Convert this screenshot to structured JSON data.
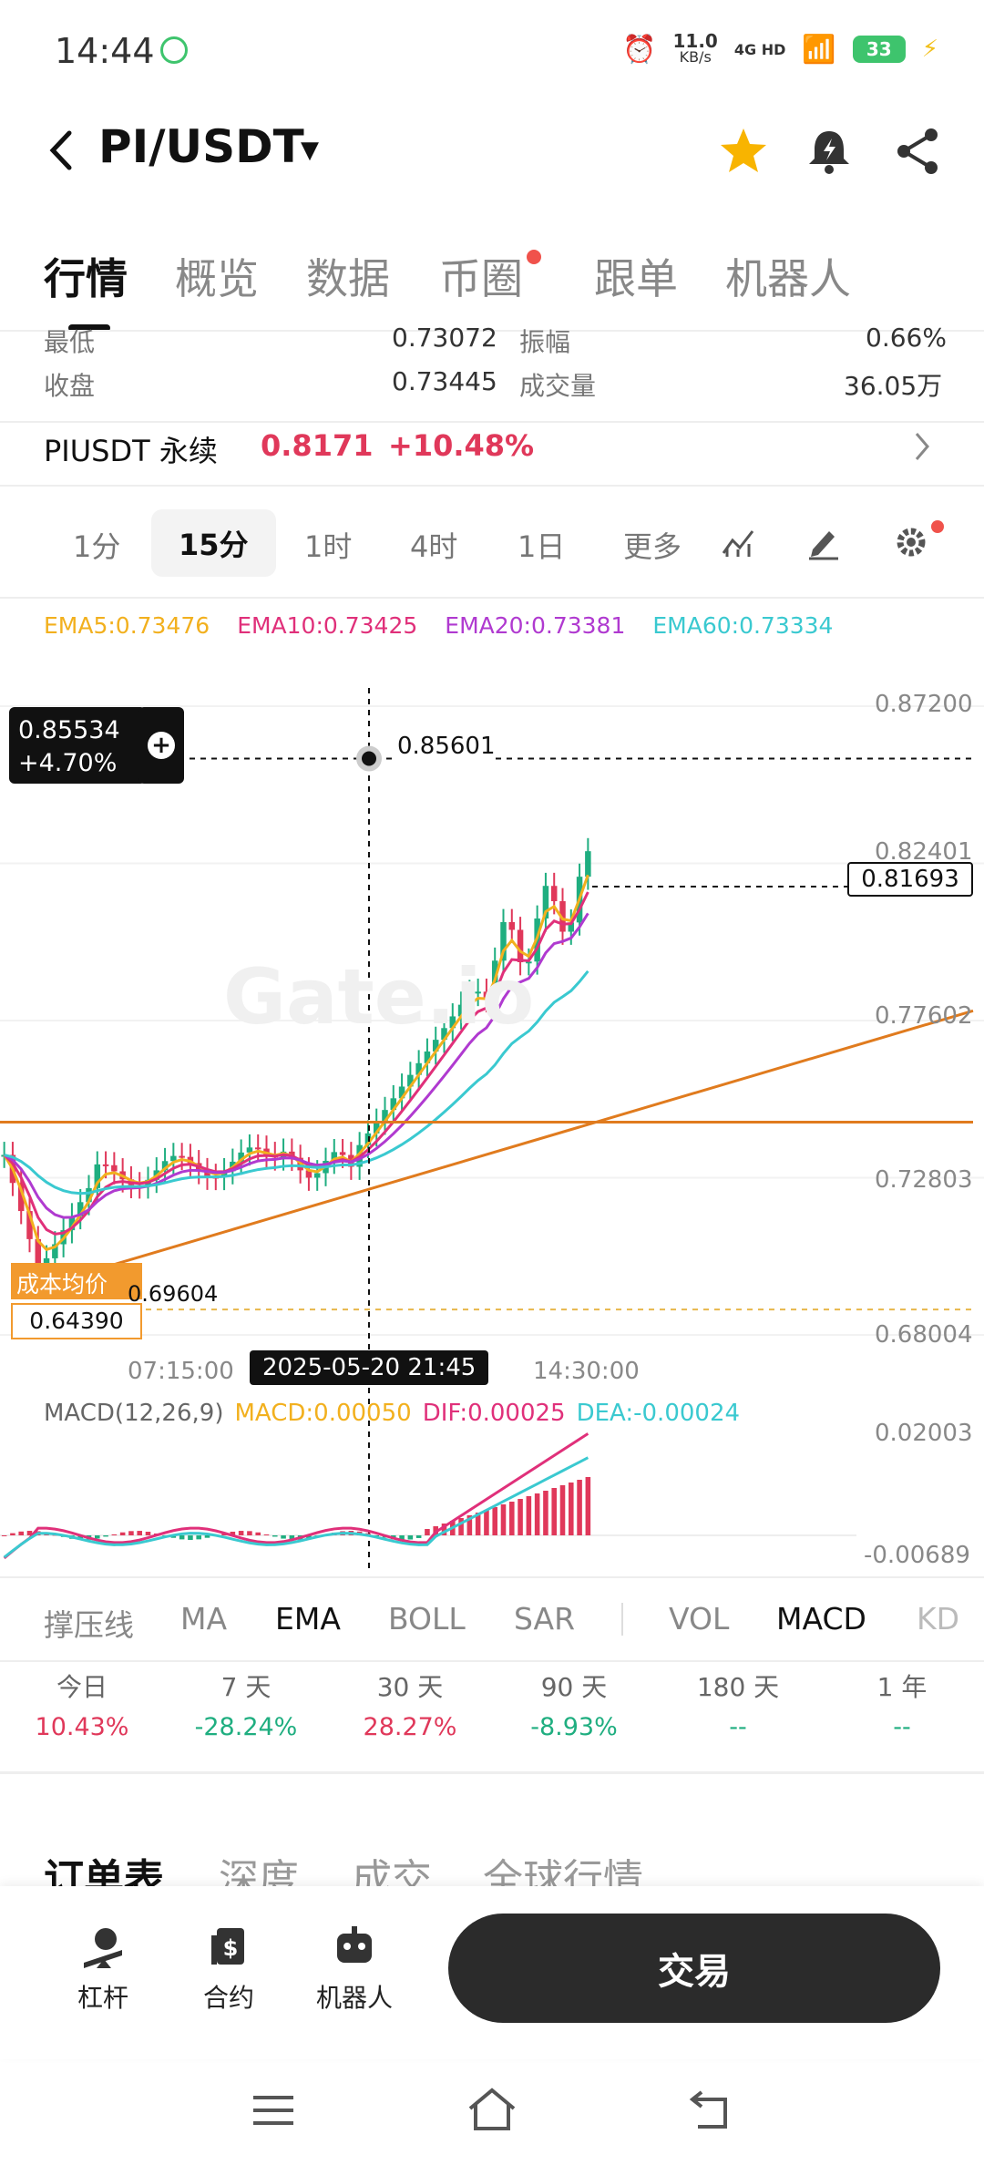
{
  "status_bar": {
    "time": "14:44",
    "net_speed": "11.0",
    "net_unit": "KB/s",
    "network": "4G HD",
    "battery": "33"
  },
  "header": {
    "pair": "PI/USDT",
    "icons": [
      "back-icon",
      "star-icon",
      "bell-icon",
      "share-icon"
    ]
  },
  "main_tabs": [
    "行情",
    "概览",
    "数据",
    "币圈",
    "跟单",
    "机器人"
  ],
  "stats": {
    "low_label": "最低",
    "low_value": "0.73072",
    "amp_label": "振幅",
    "amp_value": "0.66%",
    "close_label": "收盘",
    "close_value": "0.73445",
    "vol_label": "成交量",
    "vol_value": "36.05万"
  },
  "perp": {
    "name": "PIUSDT 永续",
    "price": "0.8171",
    "change": "+10.48%"
  },
  "intervals": [
    "1分",
    "15分",
    "1时",
    "4时",
    "1日",
    "更多"
  ],
  "ema": {
    "ema5": "EMA5:0.73476",
    "ema10": "EMA10:0.73425",
    "ema20": "EMA20:0.73381",
    "ema60": "EMA60:0.73334"
  },
  "chart": {
    "y_ticks": [
      "0.87200",
      "0.82401",
      "0.77602",
      "0.72803",
      "0.68004"
    ],
    "crosshair_price": "0.85534",
    "crosshair_change": "+4.70%",
    "high_marker": "0.85601",
    "last_price": "0.81693",
    "cost_label": "成本均价",
    "cost_price": "0.64390",
    "low_marker": "0.69604",
    "x_ticks": [
      "07:15:00",
      "14:30:00"
    ],
    "crosshair_time": "2025-05-20 21:45",
    "watermark": "Gate.io",
    "macd_title": "MACD(12,26,9)",
    "macd_value": "MACD:0.00050",
    "dif_value": "DIF:0.00025",
    "dea_value": "DEA:-0.00024",
    "macd_y_ticks": [
      "0.02003",
      "-0.00689"
    ]
  },
  "indicator_tabs": [
    "撑压线",
    "MA",
    "EMA",
    "BOLL",
    "SAR",
    "VOL",
    "MACD",
    "KD"
  ],
  "performance": [
    {
      "label": "今日",
      "value": "10.43%",
      "color": "#e0385a"
    },
    {
      "label": "7 天",
      "value": "-28.24%",
      "color": "#1fae80"
    },
    {
      "label": "30 天",
      "value": "28.27%",
      "color": "#e0385a"
    },
    {
      "label": "90 天",
      "value": "-8.93%",
      "color": "#1fae80"
    },
    {
      "label": "180 天",
      "value": "--",
      "color": "#1fae80"
    },
    {
      "label": "1 年",
      "value": "--",
      "color": "#1fae80"
    }
  ],
  "orderbook_tabs": [
    "订单表",
    "深度",
    "成交",
    "全球行情"
  ],
  "bottom_bar": {
    "leverage": "杠杆",
    "contract": "合约",
    "robot": "机器人",
    "trade": "交易"
  },
  "colors": {
    "up": "#e0385a",
    "down": "#1fae80",
    "ema5": "#f2b01e",
    "ema10": "#e0307a",
    "ema20": "#b03ad0",
    "ema60": "#3ac9d0",
    "trendline": "#e07b1e"
  },
  "chart_data": {
    "type": "candlestick",
    "ylim": [
      0.68004,
      0.872
    ],
    "notable_levels": {
      "high": 0.85601,
      "last": 0.81693,
      "horizontal_line": 0.745
    },
    "series": [
      {
        "name": "EMA5",
        "value": 0.73476
      },
      {
        "name": "EMA10",
        "value": 0.73425
      },
      {
        "name": "EMA20",
        "value": 0.73381
      },
      {
        "name": "EMA60",
        "value": 0.73334
      }
    ],
    "macd": {
      "MACD": 0.0005,
      "DIF": 0.00025,
      "DEA": -0.00024
    }
  }
}
